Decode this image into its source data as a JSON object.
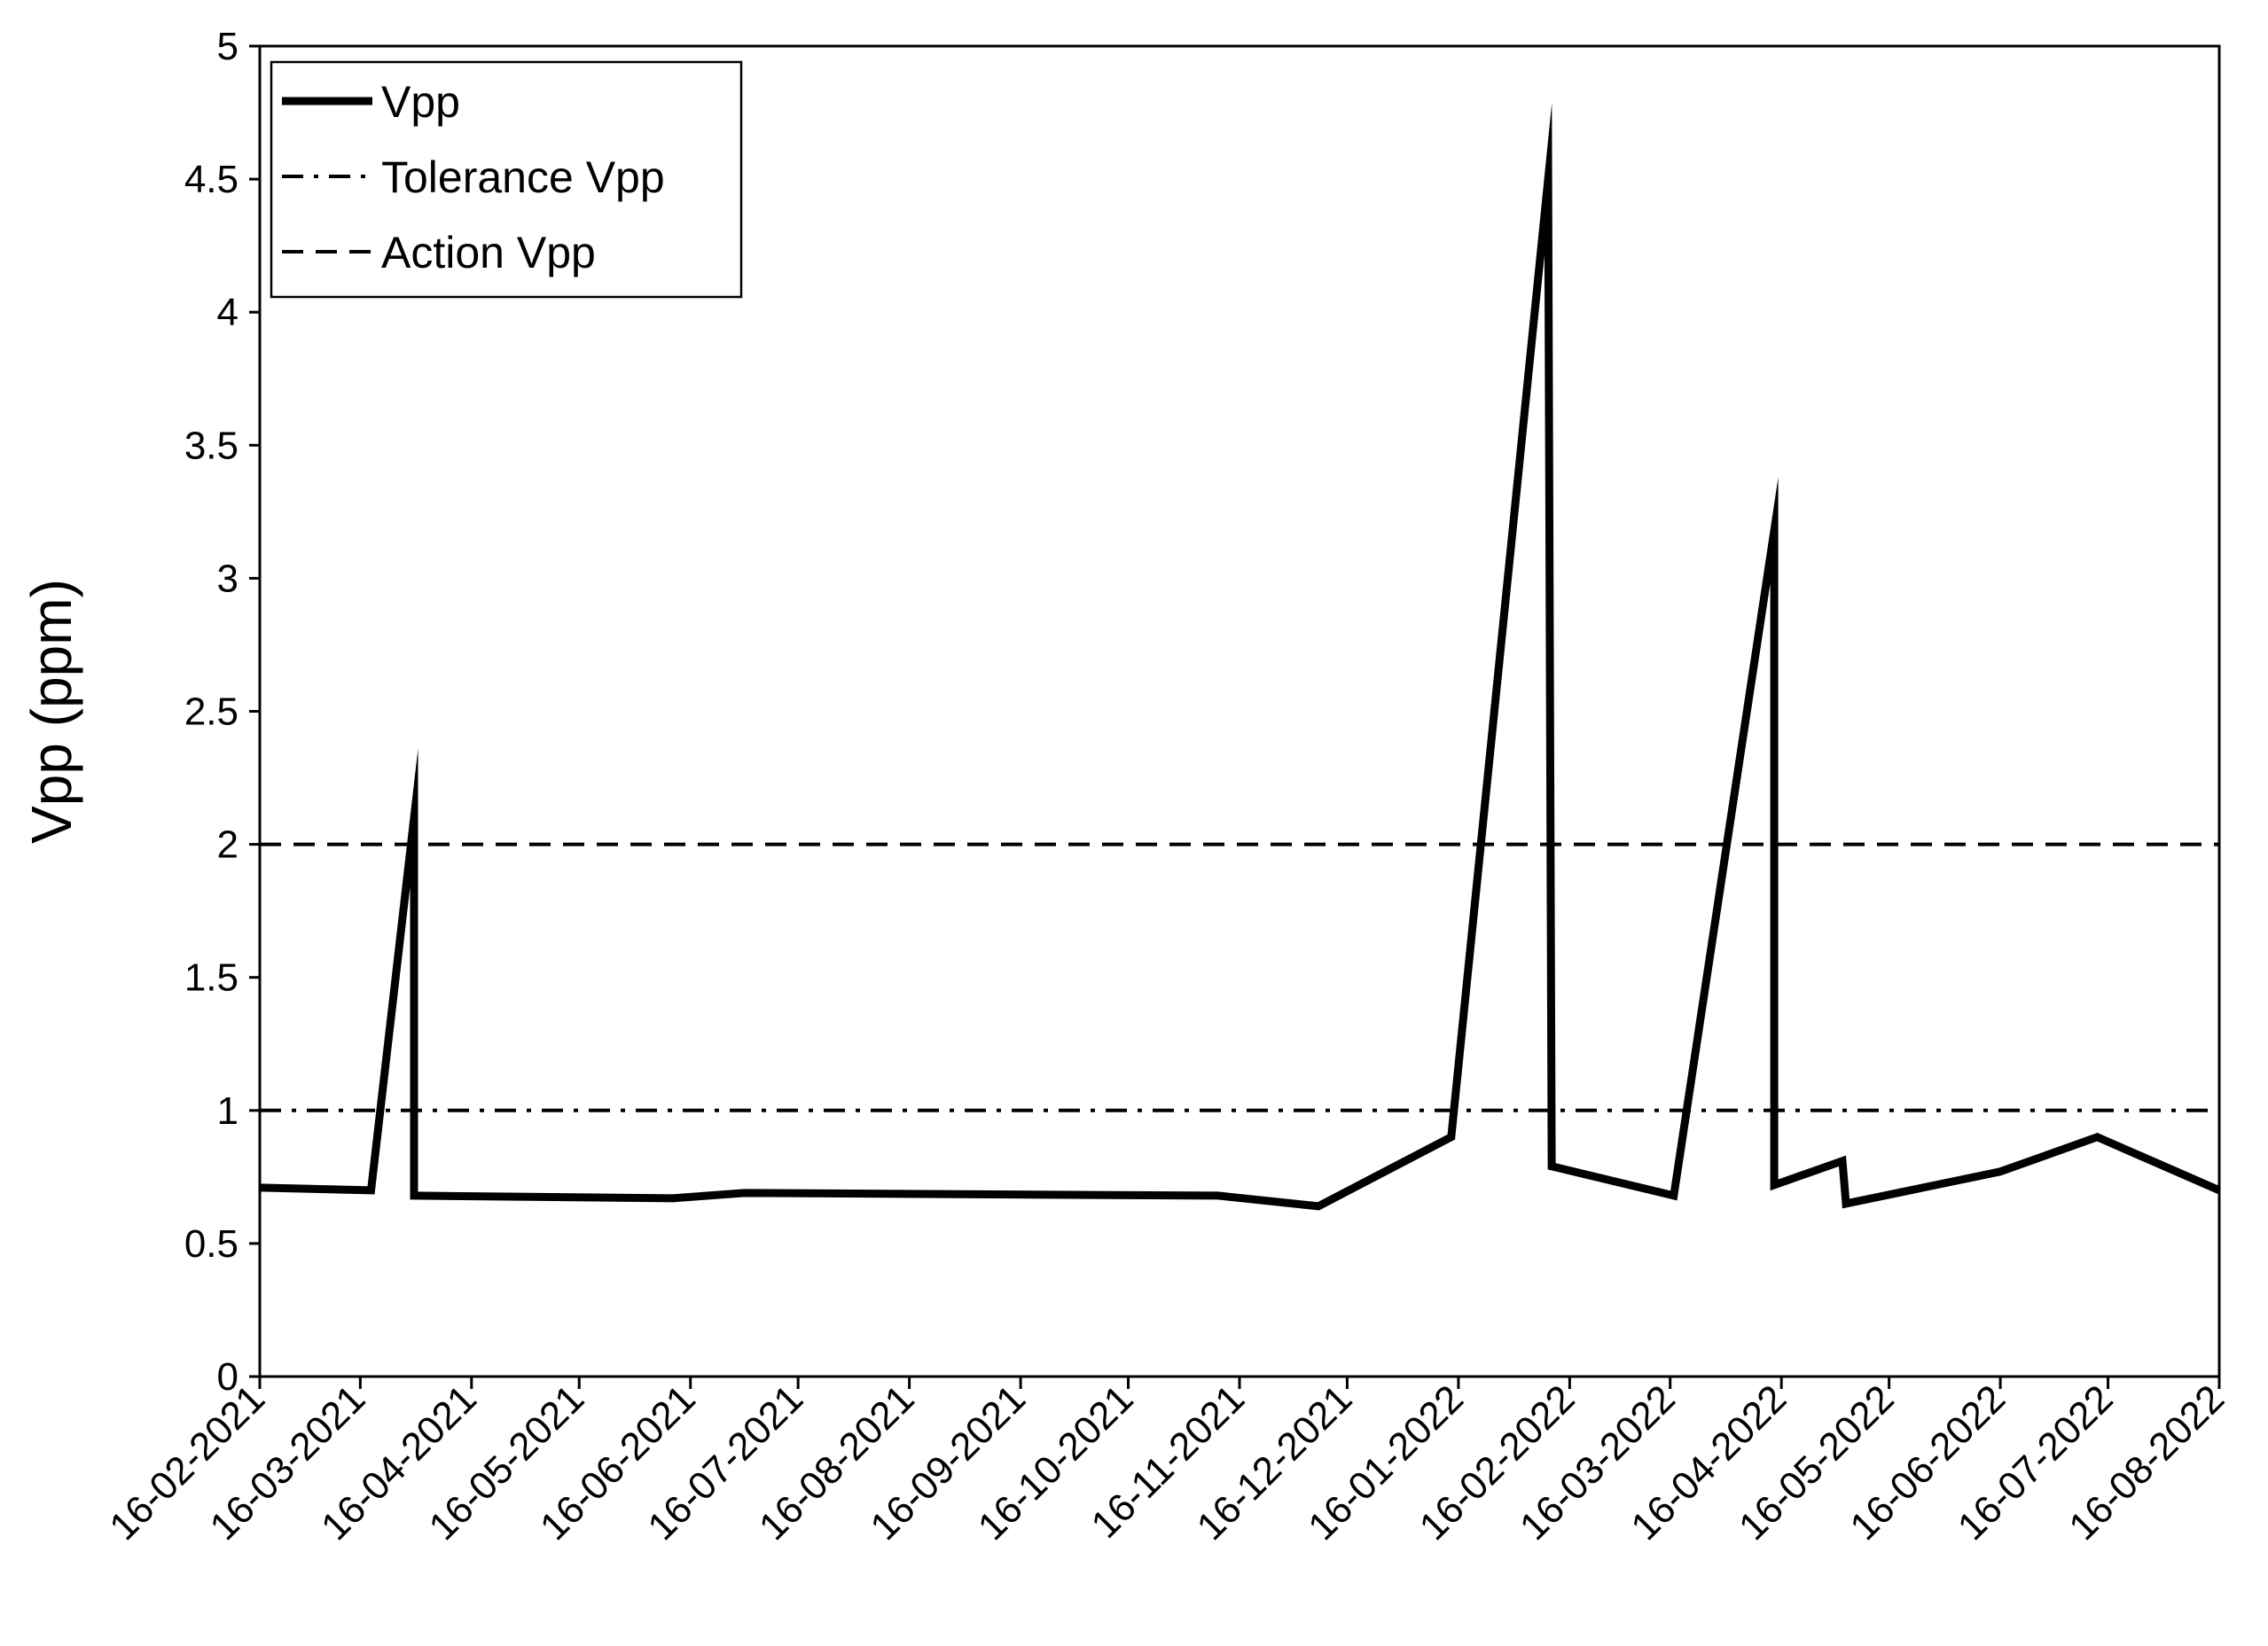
{
  "chart_data": {
    "type": "line",
    "title": "",
    "xlabel": "",
    "ylabel": "Vpp (ppm)",
    "ylim": [
      0,
      5
    ],
    "yticks": [
      "0",
      "0.5",
      "1",
      "1.5",
      "2",
      "2.5",
      "3",
      "3.5",
      "4",
      "4.5",
      "5"
    ],
    "xlim": [
      "2021-02-16",
      "2022-08-16"
    ],
    "xticks": [
      "16-02-2021",
      "16-03-2021",
      "16-04-2021",
      "16-05-2021",
      "16-06-2021",
      "16-07-2021",
      "16-08-2021",
      "16-09-2021",
      "16-10-2021",
      "16-11-2021",
      "16-12-2021",
      "16-01-2022",
      "16-02-2022",
      "16-03-2022",
      "16-04-2022",
      "16-05-2022",
      "16-06-2022",
      "16-07-2022",
      "16-08-2022"
    ],
    "grid": false,
    "legend_position": "top-left",
    "series": [
      {
        "name": "Vpp",
        "style": "solid",
        "color": "#000000",
        "points": [
          {
            "x": "2021-02-16",
            "y": 0.71
          },
          {
            "x": "2021-03-19",
            "y": 0.7
          },
          {
            "x": "2021-03-31",
            "y": 2.1
          },
          {
            "x": "2021-03-31",
            "y": 0.68
          },
          {
            "x": "2021-06-11",
            "y": 0.67
          },
          {
            "x": "2021-07-01",
            "y": 0.69
          },
          {
            "x": "2021-11-10",
            "y": 0.68
          },
          {
            "x": "2021-12-08",
            "y": 0.64
          },
          {
            "x": "2022-01-14",
            "y": 0.9
          },
          {
            "x": "2022-02-10",
            "y": 4.5
          },
          {
            "x": "2022-02-11",
            "y": 0.79
          },
          {
            "x": "2022-03-17",
            "y": 0.68
          },
          {
            "x": "2022-04-14",
            "y": 3.18
          },
          {
            "x": "2022-04-14",
            "y": 0.72
          },
          {
            "x": "2022-05-03",
            "y": 0.81
          },
          {
            "x": "2022-05-04",
            "y": 0.65
          },
          {
            "x": "2022-06-16",
            "y": 0.77
          },
          {
            "x": "2022-07-13",
            "y": 0.9
          },
          {
            "x": "2022-08-16",
            "y": 0.7
          }
        ]
      },
      {
        "name": "Tolerance Vpp",
        "style": "dash-dot",
        "color": "#000000",
        "constant": 1
      },
      {
        "name": "Action Vpp",
        "style": "dashed",
        "color": "#000000",
        "constant": 2
      }
    ]
  }
}
